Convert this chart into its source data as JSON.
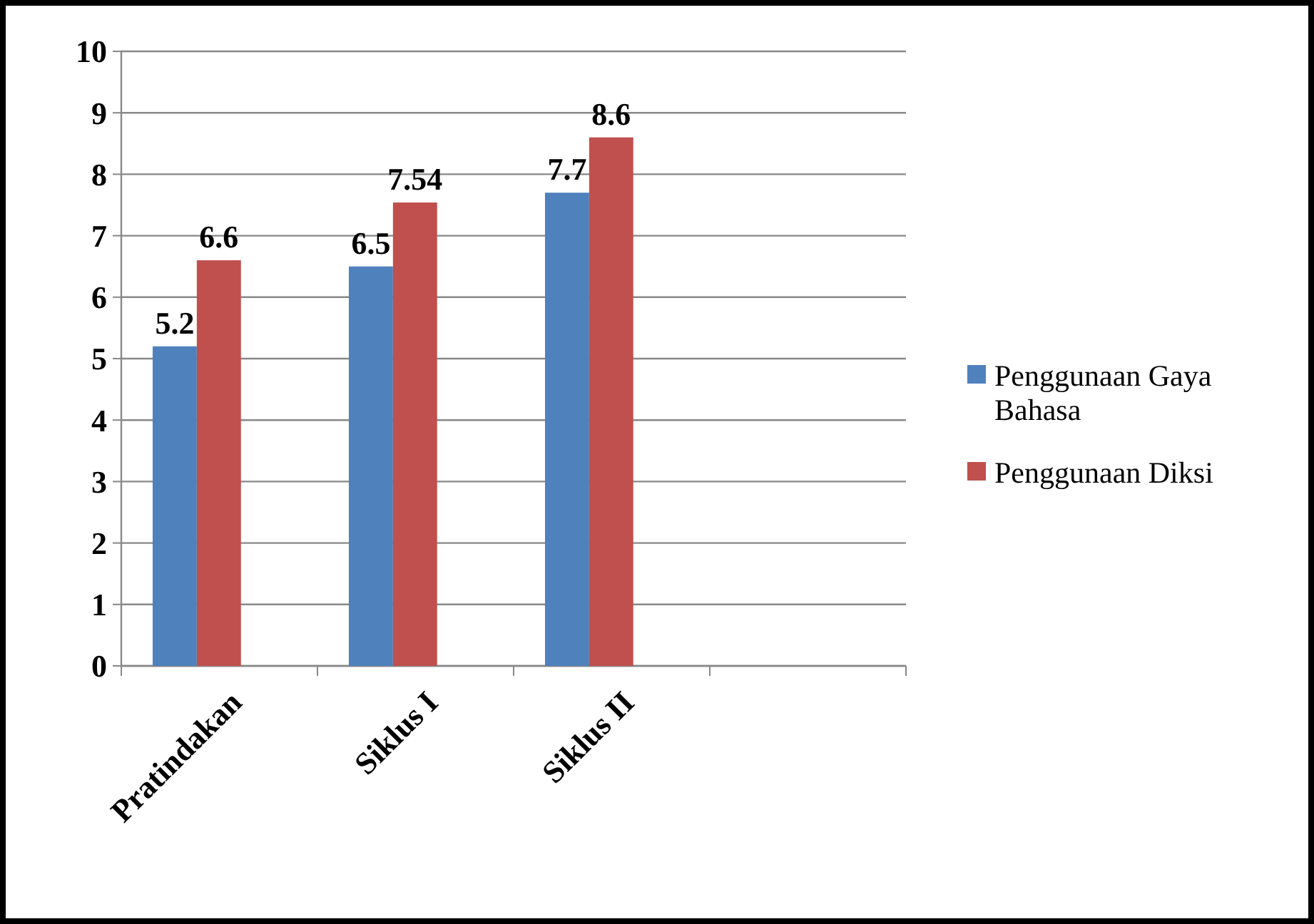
{
  "chart_data": {
    "type": "bar",
    "categories": [
      "Pratindakan",
      "Siklus I",
      "Siklus II",
      null
    ],
    "series": [
      {
        "name": "Penggunaan Gaya Bahasa",
        "color": "#4f81bd",
        "values": [
          5.2,
          6.5,
          7.7,
          null
        ]
      },
      {
        "name": "Penggunaan Diksi",
        "color": "#c0504d",
        "values": [
          6.6,
          7.54,
          8.6,
          null
        ]
      }
    ],
    "ylim": [
      0,
      10
    ],
    "yticks": [
      0,
      1,
      2,
      3,
      4,
      5,
      6,
      7,
      8,
      9,
      10
    ],
    "grid": "y",
    "legend": "right",
    "data_labels": true
  }
}
